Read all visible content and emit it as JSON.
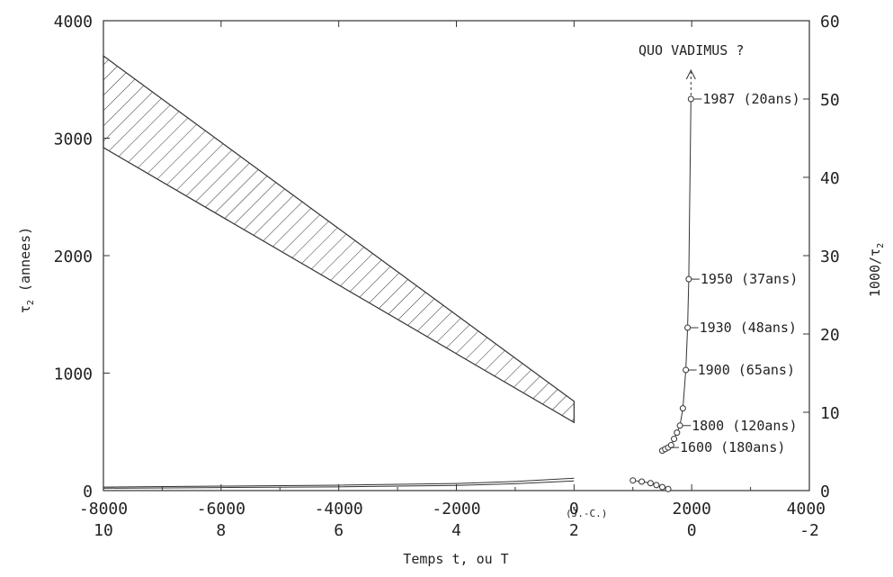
{
  "chart_data": {
    "type": "line",
    "xlabel": "Temps t, ou T",
    "ylabel_left": "τ₂ (annees)",
    "ylabel_right": "1000/τ₂",
    "x_top_ticks": [
      "-8000",
      "-6000",
      "-4000",
      "-2000",
      "0",
      "2000",
      "4000"
    ],
    "x_bottom_ticks": [
      "10",
      "8",
      "6",
      "4",
      "2",
      "0",
      "-2"
    ],
    "x_era_label": "(J.-C.)",
    "y_left_ticks": [
      "0",
      "1000",
      "2000",
      "3000",
      "4000"
    ],
    "y_right_ticks": [
      "0",
      "10",
      "20",
      "30",
      "40",
      "50",
      "60"
    ],
    "xlim": [
      -8000,
      4000
    ],
    "ylim_left": [
      0,
      4000
    ],
    "ylim_right": [
      0,
      60
    ],
    "band": {
      "x": [
        -8000,
        0
      ],
      "upper": [
        3700,
        760
      ],
      "lower": [
        2920,
        580
      ]
    },
    "bottom_curve": {
      "x": [
        -8000,
        -6000,
        -4000,
        -2000,
        -1000,
        0
      ],
      "upper": [
        30,
        38,
        46,
        60,
        78,
        105
      ],
      "lower": [
        20,
        26,
        32,
        44,
        58,
        82
      ]
    },
    "recent_points": {
      "x": [
        1000,
        1150,
        1300,
        1400,
        1500,
        1600
      ],
      "y": [
        1.3,
        1.15,
        0.95,
        0.7,
        0.45,
        0.2
      ]
    },
    "growth_curve": {
      "x": [
        1500,
        1550,
        1600,
        1650,
        1700,
        1750,
        1800,
        1850,
        1900,
        1930,
        1950,
        1987
      ],
      "y": [
        5.1,
        5.3,
        5.5,
        5.8,
        6.6,
        7.4,
        8.3,
        10.5,
        15.4,
        20.8,
        27.0,
        50.0
      ]
    },
    "annotations": [
      {
        "text": "1987 (20ans)",
        "x": 1987,
        "y": 50.0
      },
      {
        "text": "1950 (37ans)",
        "x": 1950,
        "y": 27.0
      },
      {
        "text": "1930 (48ans)",
        "x": 1930,
        "y": 20.8
      },
      {
        "text": "1900 (65ans)",
        "x": 1900,
        "y": 15.4
      },
      {
        "text": "1800 (120ans)",
        "x": 1800,
        "y": 8.3
      },
      {
        "text": "1600 (180ans)",
        "x": 1600,
        "y": 5.5
      }
    ],
    "quo_vadimus": "QUO VADIMUS ?"
  }
}
